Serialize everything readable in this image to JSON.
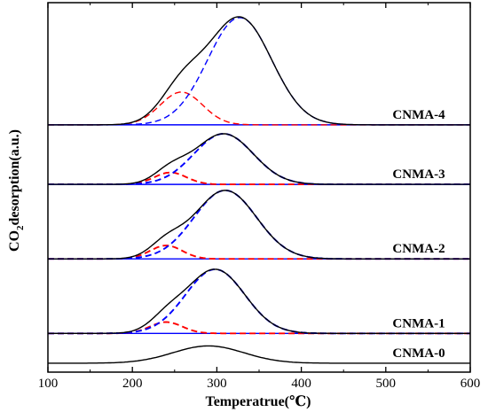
{
  "chart_data": {
    "type": "line",
    "title": "",
    "xlabel": "Temperatrue(℃)",
    "ylabel": "CO2desorption(a.u.)",
    "ylabel_parts": {
      "pre": "CO",
      "sub": "2",
      "post": "desorption(a.u.)"
    },
    "xlim": [
      100,
      600
    ],
    "xticks": [
      100,
      200,
      300,
      400,
      500,
      600
    ],
    "y_ticks_shown": false,
    "grid": false,
    "legend": "none",
    "colors": {
      "total": "#000000",
      "low_temp_peak": "#ff0000",
      "high_temp_peak": "#0000ff",
      "baseline": "#0000ff"
    },
    "samples": [
      {
        "label": "CNMA-0",
        "baseline": 0.0,
        "peaks": [
          {
            "role": "total",
            "center": 290,
            "width": 42,
            "height": 0.58
          }
        ]
      },
      {
        "label": "CNMA-1",
        "baseline": 1.0,
        "peaks": [
          {
            "role": "low_temp_peak",
            "center": 240,
            "width": 19,
            "height": 0.38
          },
          {
            "role": "high_temp_peak",
            "center": 298,
            "width": 35,
            "height": 2.15
          }
        ]
      },
      {
        "label": "CNMA-2",
        "baseline": 3.5,
        "peaks": [
          {
            "role": "low_temp_peak",
            "center": 240,
            "width": 19,
            "height": 0.45
          },
          {
            "role": "high_temp_peak",
            "center": 310,
            "width": 37,
            "height": 2.3
          }
        ]
      },
      {
        "label": "CNMA-3",
        "baseline": 6.0,
        "peaks": [
          {
            "role": "low_temp_peak",
            "center": 245,
            "width": 19,
            "height": 0.4
          },
          {
            "role": "high_temp_peak",
            "center": 308,
            "width": 35,
            "height": 1.7
          }
        ]
      },
      {
        "label": "CNMA-4",
        "baseline": 8.0,
        "peaks": [
          {
            "role": "low_temp_peak",
            "center": 258,
            "width": 25,
            "height": 1.1
          },
          {
            "role": "high_temp_peak",
            "center": 327,
            "width": 38,
            "height": 3.6
          }
        ]
      }
    ]
  }
}
